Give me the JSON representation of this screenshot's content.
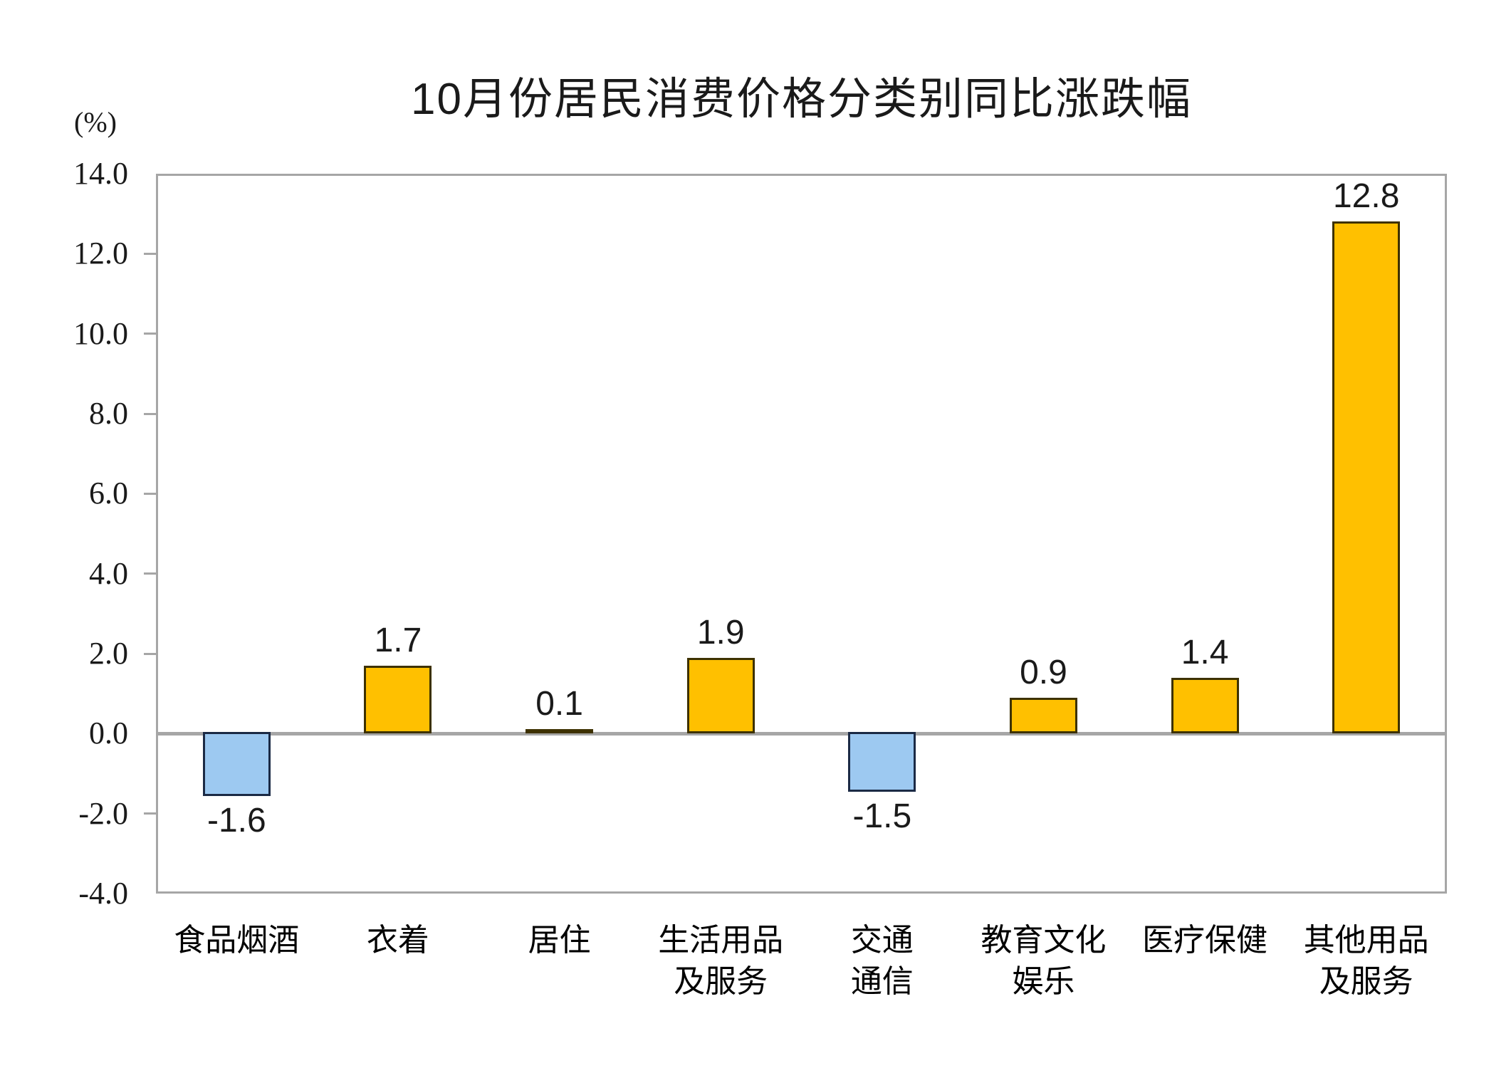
{
  "chart_data": {
    "type": "bar",
    "title": "10月份居民消费价格分类别同比涨跌幅",
    "ylabel": "(%)",
    "xlabel": "",
    "ylim": [
      -4.0,
      14.0
    ],
    "ytick_step": 2.0,
    "yticks": [
      "14.0",
      "12.0",
      "10.0",
      "8.0",
      "6.0",
      "4.0",
      "2.0",
      "0.0",
      "-2.0",
      "-4.0"
    ],
    "grid": false,
    "legend": null,
    "categories": [
      "食品烟酒",
      "衣着",
      "居住",
      "生活用品及服务",
      "交通通信",
      "教育文化娱乐",
      "医疗保健",
      "其他用品及服务"
    ],
    "categories_wrapped": [
      [
        "食品烟酒"
      ],
      [
        "衣着"
      ],
      [
        "居住"
      ],
      [
        "生活用品",
        "及服务"
      ],
      [
        "交通",
        "通信"
      ],
      [
        "教育文化",
        "娱乐"
      ],
      [
        "医疗保健"
      ],
      [
        "其他用品",
        "及服务"
      ]
    ],
    "values": [
      -1.6,
      1.7,
      0.1,
      1.9,
      -1.5,
      0.9,
      1.4,
      12.8
    ],
    "value_labels": [
      "-1.6",
      "1.7",
      "0.1",
      "1.9",
      "-1.5",
      "0.9",
      "1.4",
      "12.8"
    ]
  },
  "colors": {
    "positive_fill": "#FFC000",
    "positive_border": "#3D3100",
    "negative_fill": "#9DC9F1",
    "negative_border": "#1B2A45",
    "axis": "#A6A6A6",
    "text": "#1A1A1A"
  }
}
